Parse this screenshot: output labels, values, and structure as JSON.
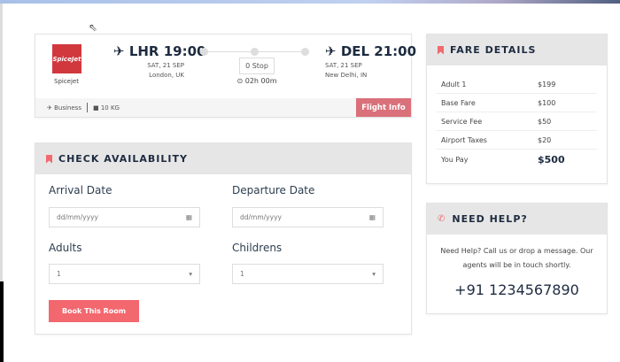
{
  "flight": {
    "airline_logo_text": "SpiceJet",
    "airline_name": "Spicejet",
    "departure": {
      "code_time": "LHR 19:00",
      "date": "SAT, 21 SEP",
      "city": "London, UK"
    },
    "arrival": {
      "code_time": "DEL 21:00",
      "date": "SAT, 21 SEP",
      "city": "New Delhi, IN"
    },
    "stops": "0 Stop",
    "duration": "02h 00m",
    "class": "Business",
    "baggage": "10 KG",
    "flight_info_label": "Flight Info"
  },
  "availability": {
    "title": "CHECK AVAILABILITY",
    "arrival_label": "Arrival Date",
    "arrival_placeholder": "dd/mm/yyyy",
    "departure_label": "Departure Date",
    "departure_placeholder": "dd/mm/yyyy",
    "adults_label": "Adults",
    "adults_value": "1",
    "children_label": "Childrens",
    "children_value": "1",
    "book_label": "Book This Room"
  },
  "fare": {
    "title": "FARE DETAILS",
    "rows": [
      {
        "label": "Adult 1",
        "value": "$199"
      },
      {
        "label": "Base Fare",
        "value": "$100"
      },
      {
        "label": "Service Fee",
        "value": "$50"
      },
      {
        "label": "Airport Taxes",
        "value": "$20"
      },
      {
        "label": "You Pay",
        "value": "$500"
      }
    ]
  },
  "help": {
    "title": "NEED HELP?",
    "text": "Need Help? Call us or drop a message. Our agents will be in touch shortly.",
    "phone": "+91 1234567890"
  },
  "colors": {
    "accent": "#f3676e",
    "flight_info": "#d9707a",
    "heading": "#1d2b40"
  }
}
